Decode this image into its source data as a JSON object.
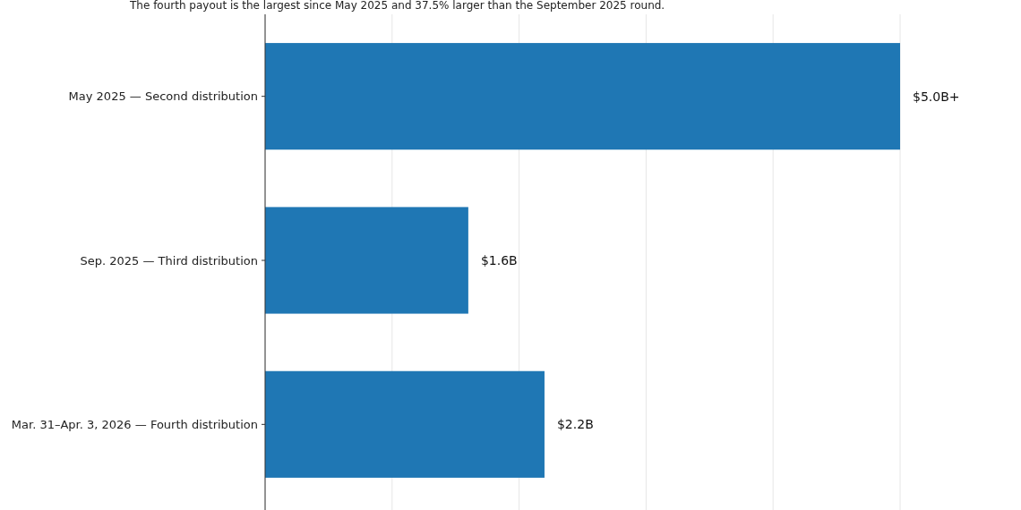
{
  "chart_data": {
    "type": "bar",
    "orientation": "horizontal",
    "subtitle": "The fourth payout is the largest since May 2025 and 37.5% larger than the September 2025 round.",
    "categories": [
      "May 2025 — Second distribution",
      "Sep. 2025 — Third distribution",
      "Mar. 31–Apr. 3, 2026 — Fourth distribution"
    ],
    "values": [
      5.0,
      1.6,
      2.2
    ],
    "value_labels": [
      "$5.0B+",
      "$1.6B",
      "$2.2B"
    ],
    "color": "#1f77b4",
    "xticks": [
      {
        "value": 0,
        "label": null
      },
      {
        "value": 1,
        "label": null
      },
      {
        "value": 2,
        "label": null
      },
      {
        "value": 3,
        "label": null
      },
      {
        "value": 4,
        "label": null
      },
      {
        "value": 5,
        "label": null
      }
    ],
    "grid": "x",
    "tick_labels": "y"
  }
}
